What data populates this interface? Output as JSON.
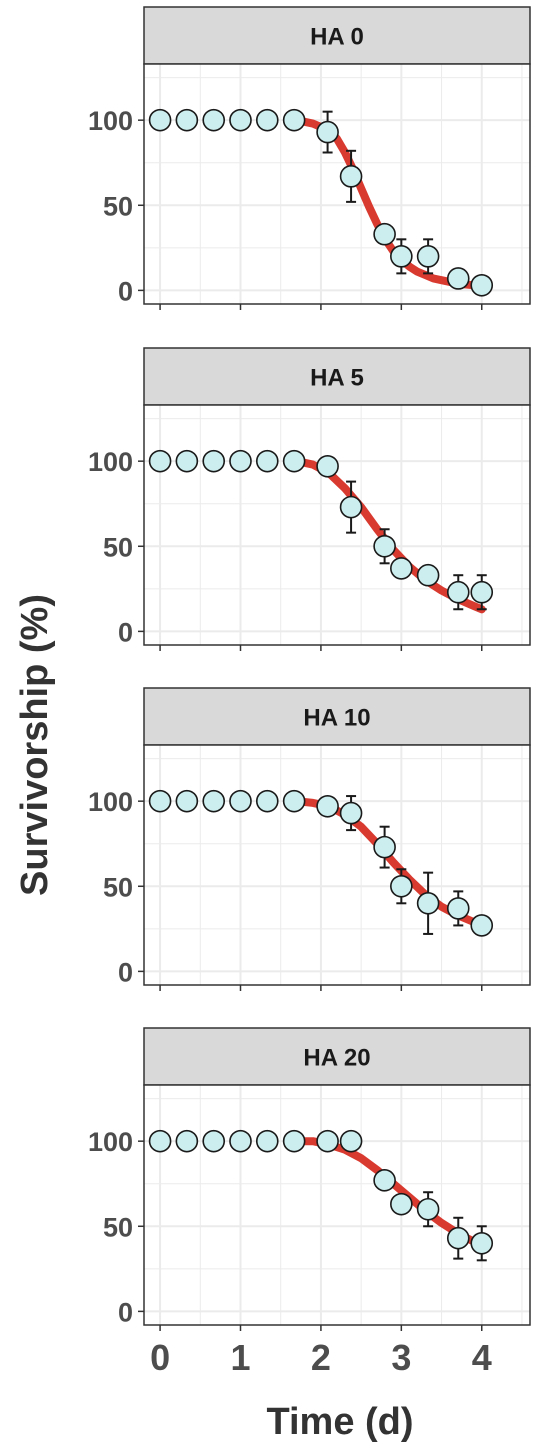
{
  "chart_data": {
    "type": "scatter",
    "layout": "faceted",
    "ylabel": "Survivorship (%)",
    "xlabel": "Time (d)",
    "xlim": [
      -0.2,
      4.6
    ],
    "ylim": [
      -8,
      133
    ],
    "x_ticks": [
      0,
      1,
      2,
      3,
      4
    ],
    "y_ticks": [
      0,
      50,
      100
    ],
    "grid": true,
    "colors": {
      "point_fill": "#cdeeee",
      "point_stroke": "#1a1a1a",
      "fit_line": "#d93a30",
      "strip_bg": "#d9d9d9",
      "grid": "#ebebeb"
    },
    "panels": [
      {
        "label": "HA 0",
        "x": [
          0,
          0.333,
          0.667,
          1,
          1.333,
          1.667,
          2.083,
          2.375,
          2.792,
          3.0,
          3.333,
          3.708,
          4.0
        ],
        "y": [
          100,
          100,
          100,
          100,
          100,
          100,
          93,
          67,
          33,
          20,
          20,
          7,
          3
        ],
        "err": [
          0,
          0,
          0,
          0,
          0,
          0,
          12,
          15,
          5,
          10,
          10,
          3,
          3
        ],
        "fit_x": [
          1.7,
          1.9,
          2.1,
          2.2,
          2.3,
          2.4,
          2.5,
          2.6,
          2.7,
          2.8,
          2.9,
          3.0,
          3.1,
          3.2,
          3.3,
          3.4,
          3.5,
          3.7,
          3.9,
          4.0
        ],
        "fit_y": [
          100,
          98,
          94,
          89,
          81,
          71,
          60,
          49,
          39,
          30,
          23,
          18,
          14,
          11,
          9,
          7,
          6,
          4,
          3,
          2
        ]
      },
      {
        "label": "HA 5",
        "x": [
          0,
          0.333,
          0.667,
          1,
          1.333,
          1.667,
          2.083,
          2.375,
          2.792,
          3.0,
          3.333,
          3.708,
          4.0
        ],
        "y": [
          100,
          100,
          100,
          100,
          100,
          100,
          97,
          73,
          50,
          37,
          33,
          23,
          23
        ],
        "err": [
          0,
          0,
          0,
          0,
          0,
          0,
          3,
          15,
          10,
          5,
          3,
          10,
          10
        ],
        "fit_x": [
          1.7,
          1.9,
          2.1,
          2.3,
          2.5,
          2.7,
          2.9,
          3.1,
          3.3,
          3.5,
          3.7,
          3.9,
          4.0
        ],
        "fit_y": [
          100,
          98,
          93,
          84,
          73,
          60,
          48,
          38,
          30,
          24,
          19,
          15,
          13
        ]
      },
      {
        "label": "HA 10",
        "x": [
          0,
          0.333,
          0.667,
          1,
          1.333,
          1.667,
          2.083,
          2.375,
          2.792,
          3.0,
          3.333,
          3.708,
          4.0
        ],
        "y": [
          100,
          100,
          100,
          100,
          100,
          100,
          97,
          93,
          73,
          50,
          40,
          37,
          27
        ],
        "err": [
          0,
          0,
          0,
          0,
          0,
          0,
          3,
          10,
          12,
          10,
          18,
          10,
          3
        ],
        "fit_x": [
          1.7,
          1.9,
          2.1,
          2.3,
          2.5,
          2.7,
          2.9,
          3.1,
          3.3,
          3.5,
          3.7,
          3.9,
          4.0
        ],
        "fit_y": [
          100,
          99,
          97,
          92,
          85,
          75,
          64,
          54,
          45,
          38,
          33,
          29,
          27
        ]
      },
      {
        "label": "HA 20",
        "x": [
          0,
          0.333,
          0.667,
          1,
          1.333,
          1.667,
          2.083,
          2.375,
          2.792,
          3.0,
          3.333,
          3.708,
          4.0
        ],
        "y": [
          100,
          100,
          100,
          100,
          100,
          100,
          100,
          100,
          77,
          63,
          60,
          43,
          40
        ],
        "err": [
          0,
          0,
          0,
          0,
          0,
          0,
          0,
          0,
          3,
          3,
          10,
          12,
          10
        ],
        "fit_x": [
          1.7,
          1.9,
          2.1,
          2.3,
          2.5,
          2.7,
          2.9,
          3.1,
          3.3,
          3.5,
          3.7,
          3.9,
          4.0
        ],
        "fit_y": [
          100,
          100,
          98,
          95,
          90,
          83,
          75,
          67,
          59,
          52,
          46,
          41,
          39
        ]
      }
    ]
  }
}
